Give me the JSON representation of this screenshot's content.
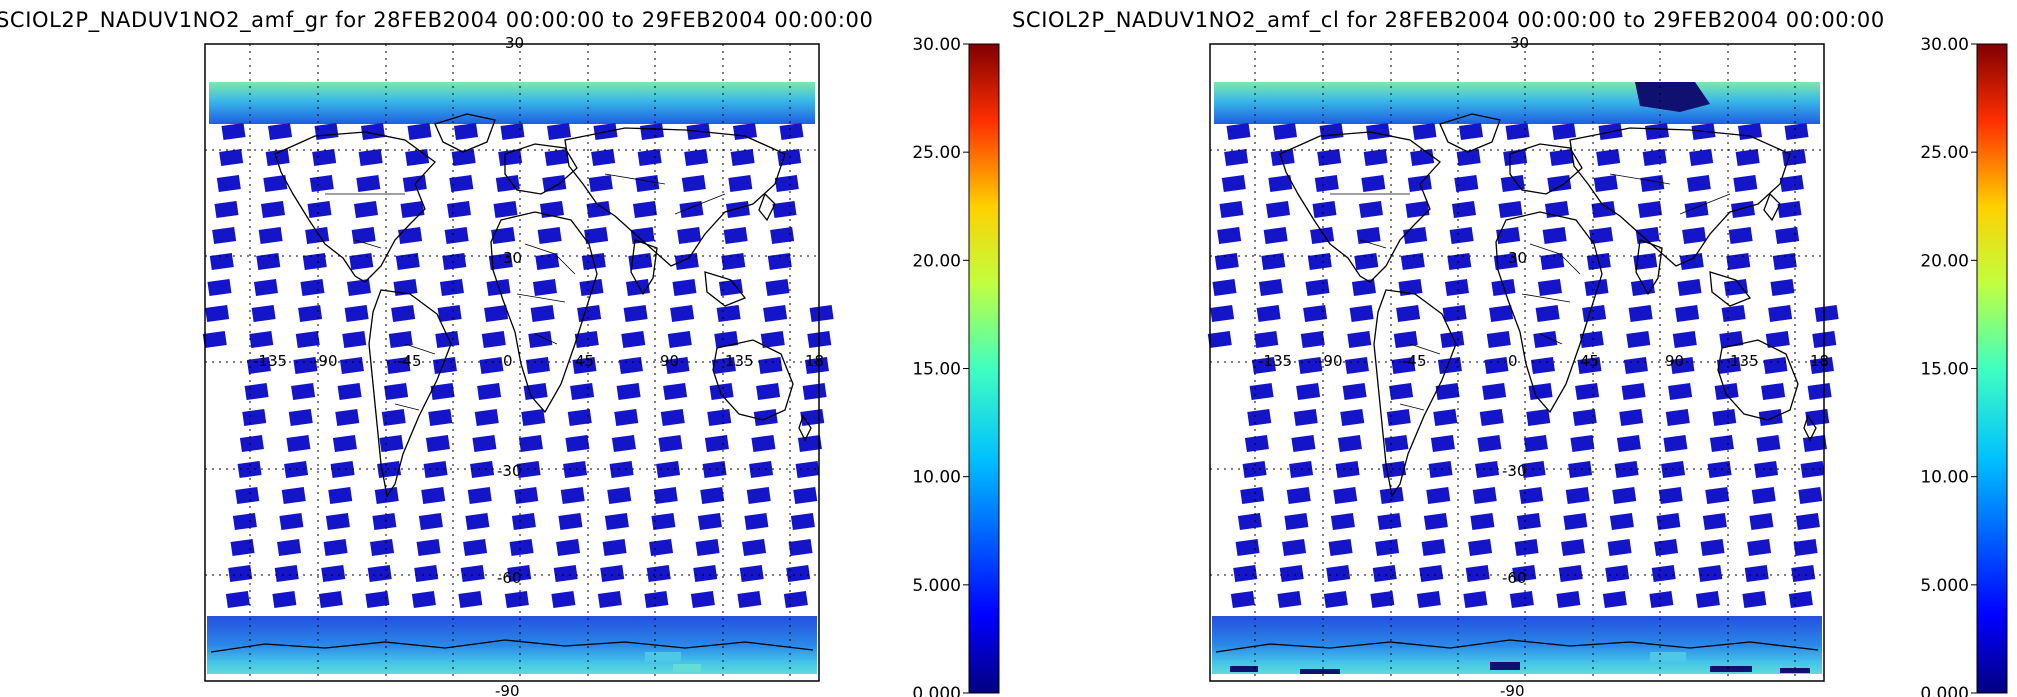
{
  "panels": [
    {
      "id": "left",
      "title": "SCIOL2P_NADUV1NO2_amf_gr for 28FEB2004 00:00:00 to 29FEB2004 00:00:00",
      "colorbar": {
        "min": 0,
        "max": 30,
        "tick_labels": [
          "0.000",
          "5.000",
          "10.00",
          "15.00",
          "20.00",
          "25.00",
          "30.00"
        ]
      },
      "map_labels": {
        "lat_top": "30",
        "lat_30": "30",
        "lat_m30": "-30",
        "lat_m60": "-60",
        "lat_bottom": "-90",
        "lon": [
          "-135",
          "-90",
          "-45",
          "0",
          "45",
          "90",
          "135",
          "18"
        ]
      }
    },
    {
      "id": "right",
      "title": "SCIOL2P_NADUV1NO2_amf_cl for 28FEB2004 00:00:00 to 29FEB2004 00:00:00",
      "colorbar": {
        "min": 0,
        "max": 30,
        "tick_labels": [
          "0.000",
          "5.000",
          "10.00",
          "15.00",
          "20.00",
          "25.00",
          "30.00"
        ]
      },
      "map_labels": {
        "lat_top": "30",
        "lat_30": "30",
        "lat_m30": "-30",
        "lat_m60": "-60",
        "lat_bottom": "-90",
        "lon": [
          "-135",
          "-90",
          "-45",
          "0",
          "45",
          "90",
          "135",
          "18"
        ]
      }
    }
  ],
  "colors": {
    "swath": "#1414c8",
    "polar_low": "#1f6ae0",
    "polar_mid": "#2fb0e8",
    "polar_high": "#6ee6b0",
    "coast": "#000000"
  }
}
